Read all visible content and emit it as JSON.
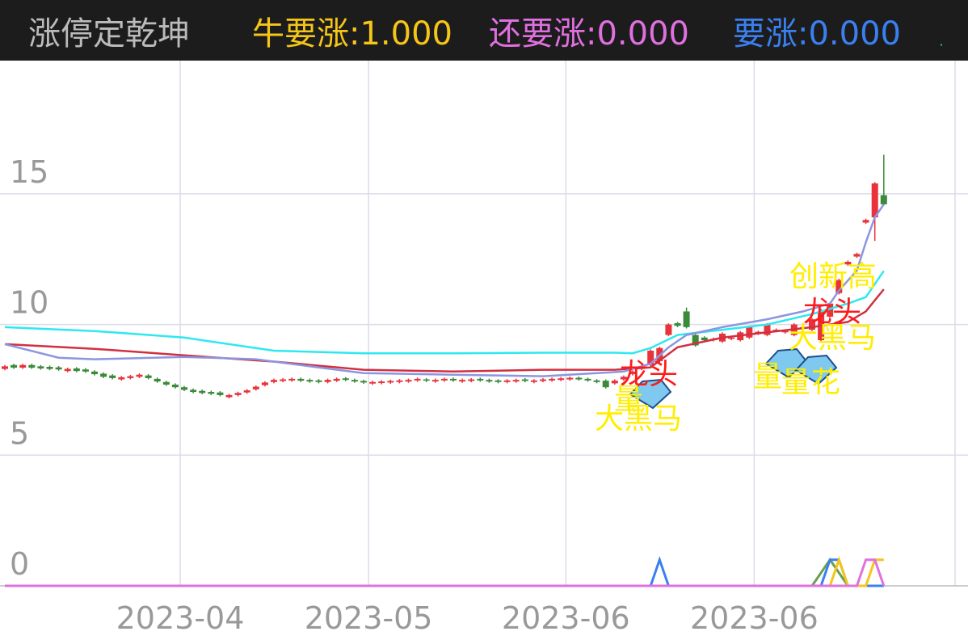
{
  "header": {
    "title": "涨停定乾坤",
    "indicators": [
      {
        "name": "牛要涨:",
        "value": 1,
        "value_label": "1.000",
        "color": "#f5c518"
      },
      {
        "name": "还要涨:",
        "value": 0,
        "value_label": "0.000",
        "color": "#e070e0"
      },
      {
        "name": "要涨:",
        "value": 0,
        "value_label": "0.000",
        "color": "#3a80f0"
      }
    ]
  },
  "chart_data": {
    "type": "candlestick",
    "categories": [
      null,
      null,
      null,
      null,
      null,
      null,
      null,
      null,
      null,
      null,
      null,
      null,
      null,
      null,
      null,
      null,
      null,
      null,
      null,
      null,
      "2023-04",
      null,
      null,
      null,
      null,
      null,
      null,
      null,
      null,
      null,
      null,
      null,
      null,
      null,
      null,
      null,
      null,
      null,
      null,
      null,
      null,
      "2023-05",
      null,
      null,
      null,
      null,
      null,
      null,
      null,
      null,
      null,
      null,
      null,
      null,
      null,
      null,
      null,
      null,
      null,
      null,
      null,
      null,
      null,
      "2023-06",
      null,
      null,
      null,
      null,
      null,
      null,
      null,
      null,
      null,
      null,
      null,
      null,
      null,
      null,
      null,
      null,
      null,
      null,
      null,
      null,
      "2023-06",
      null,
      null,
      null,
      null,
      null,
      null,
      null,
      null,
      null,
      null,
      null,
      null,
      null,
      null
    ],
    "open": [
      8.3,
      8.45,
      8.35,
      8.45,
      8.4,
      8.38,
      8.36,
      8.22,
      8.32,
      8.28,
      8.2,
      8.12,
      8.05,
      7.9,
      7.95,
      8.0,
      8.05,
      7.92,
      7.8,
      7.7,
      7.6,
      7.5,
      7.46,
      7.42,
      7.4,
      7.22,
      7.3,
      7.4,
      7.52,
      7.68,
      7.8,
      7.84,
      7.86,
      7.92,
      7.88,
      7.86,
      7.8,
      7.85,
      7.94,
      7.88,
      7.84,
      7.74,
      7.76,
      7.78,
      7.8,
      7.82,
      7.86,
      7.9,
      7.82,
      7.86,
      7.92,
      7.82,
      7.84,
      7.92,
      7.88,
      7.86,
      7.8,
      7.82,
      7.9,
      7.8,
      7.84,
      7.86,
      7.88,
      7.9,
      7.96,
      7.92,
      7.86,
      7.85,
      7.75,
      7.9,
      8.1,
      8.3,
      8.45,
      8.6,
      9.6,
      10.05,
      10.5,
      9.6,
      9.5,
      9.4,
      9.35,
      9.45,
      9.4,
      9.5,
      9.65,
      9.6,
      9.75,
      9.7,
      9.6,
      9.85,
      9.8,
      9.4,
      10.3,
      11.2,
      12.3,
      12.6,
      13.9,
      14.1,
      14.95
    ],
    "high": [
      8.45,
      8.5,
      8.5,
      8.5,
      8.45,
      8.43,
      8.41,
      8.35,
      8.37,
      8.33,
      8.25,
      8.17,
      8.1,
      8.03,
      8.07,
      8.13,
      8.1,
      7.97,
      7.85,
      7.75,
      7.65,
      7.55,
      7.51,
      7.47,
      7.45,
      7.35,
      7.43,
      7.53,
      7.67,
      7.83,
      7.93,
      7.95,
      7.97,
      7.97,
      7.93,
      7.91,
      7.93,
      7.97,
      7.99,
      7.93,
      7.89,
      7.85,
      7.87,
      7.89,
      7.91,
      7.93,
      7.97,
      7.95,
      7.93,
      7.97,
      7.97,
      7.93,
      7.95,
      7.97,
      7.93,
      7.91,
      7.91,
      7.93,
      7.95,
      7.91,
      7.95,
      7.97,
      7.99,
      8.01,
      8.01,
      7.97,
      7.91,
      7.9,
      7.9,
      8.05,
      8.25,
      8.45,
      9.05,
      9.15,
      10.05,
      10.1,
      10.65,
      9.65,
      9.55,
      9.5,
      9.7,
      9.55,
      9.75,
      9.95,
      9.77,
      10.05,
      9.85,
      9.8,
      10.05,
      9.95,
      10.25,
      10.6,
      10.85,
      11.75,
      12.45,
      12.75,
      14.05,
      15.45,
      16.5
    ],
    "low": [
      8.25,
      8.3,
      8.3,
      8.3,
      8.27,
      8.25,
      8.23,
      8.17,
      8.17,
      8.15,
      8.05,
      7.95,
      7.9,
      7.85,
      7.9,
      7.95,
      7.9,
      7.77,
      7.65,
      7.55,
      7.45,
      7.37,
      7.33,
      7.3,
      7.25,
      7.17,
      7.25,
      7.35,
      7.47,
      7.63,
      7.75,
      7.79,
      7.81,
      7.8,
      7.77,
      7.75,
      7.75,
      7.8,
      7.83,
      7.77,
      7.73,
      7.69,
      7.71,
      7.73,
      7.75,
      7.77,
      7.81,
      7.8,
      7.77,
      7.81,
      7.81,
      7.77,
      7.79,
      7.81,
      7.77,
      7.75,
      7.75,
      7.77,
      7.79,
      7.75,
      7.79,
      7.81,
      7.83,
      7.85,
      7.85,
      7.81,
      7.75,
      7.55,
      7.7,
      7.85,
      8.05,
      8.25,
      8.4,
      8.55,
      9.55,
      9.9,
      9.85,
      9.15,
      9.35,
      9.35,
      9.3,
      9.4,
      9.35,
      9.45,
      9.6,
      9.55,
      9.7,
      9.65,
      9.55,
      9.8,
      9.75,
      9.35,
      10.25,
      11.15,
      12.25,
      12.55,
      13.85,
      13.2,
      14.55
    ],
    "close": [
      8.4,
      8.35,
      8.45,
      8.35,
      8.32,
      8.3,
      8.28,
      8.3,
      8.22,
      8.2,
      8.1,
      8.0,
      7.95,
      7.98,
      8.02,
      8.08,
      7.95,
      7.82,
      7.7,
      7.6,
      7.5,
      7.42,
      7.38,
      7.35,
      7.3,
      7.3,
      7.38,
      7.48,
      7.62,
      7.78,
      7.88,
      7.9,
      7.92,
      7.85,
      7.82,
      7.8,
      7.88,
      7.92,
      7.88,
      7.82,
      7.78,
      7.8,
      7.82,
      7.84,
      7.86,
      7.88,
      7.92,
      7.85,
      7.88,
      7.92,
      7.86,
      7.88,
      7.9,
      7.86,
      7.82,
      7.8,
      7.86,
      7.88,
      7.84,
      7.86,
      7.9,
      7.92,
      7.94,
      7.96,
      7.9,
      7.86,
      7.8,
      7.6,
      7.85,
      8.0,
      8.2,
      8.4,
      9.0,
      9.1,
      10.0,
      9.95,
      9.9,
      9.2,
      9.4,
      9.45,
      9.65,
      9.5,
      9.7,
      9.9,
      9.72,
      10.0,
      9.8,
      9.75,
      10.0,
      9.9,
      10.2,
      10.5,
      10.8,
      11.7,
      12.4,
      12.7,
      14.0,
      15.4,
      14.6
    ],
    "up_color": "#e8333a",
    "down_color": "#3a8a3a",
    "lines": [
      {
        "color": "#2ee8f0",
        "x": [
          0,
          10,
          20,
          30,
          40,
          50,
          60,
          68,
          70,
          72,
          75,
          80,
          85,
          90,
          94,
          96,
          98
        ],
        "values": [
          9.9,
          9.75,
          9.5,
          9.0,
          8.9,
          8.9,
          8.92,
          8.92,
          8.9,
          9.1,
          9.6,
          9.8,
          10.0,
          10.4,
          10.8,
          11.05,
          12.05
        ]
      },
      {
        "color": "#d03040",
        "x": [
          0,
          10,
          20,
          30,
          40,
          50,
          60,
          68,
          72,
          75,
          80,
          85,
          90,
          94,
          96,
          98
        ],
        "values": [
          9.25,
          9.07,
          8.82,
          8.58,
          8.27,
          8.2,
          8.27,
          8.27,
          8.36,
          9.13,
          9.5,
          9.7,
          9.9,
          10.1,
          10.5,
          11.35
        ]
      },
      {
        "color": "#8c96e0",
        "x": [
          0,
          6,
          10,
          20,
          28,
          35,
          40,
          50,
          60,
          66,
          69,
          72,
          74,
          76,
          80,
          85,
          89,
          92,
          93,
          95,
          96,
          97,
          98
        ],
        "values": [
          9.25,
          8.73,
          8.67,
          8.76,
          8.67,
          8.36,
          8.14,
          8.08,
          8.02,
          8.14,
          8.2,
          8.5,
          9.13,
          9.6,
          9.9,
          10.2,
          10.5,
          10.8,
          11.3,
          12.07,
          13.15,
          14.1,
          14.6
        ]
      }
    ],
    "signals": [
      {
        "color": "#6aa050",
        "x": [
          0,
          90,
          92,
          94,
          98
        ],
        "values": [
          0,
          0,
          1,
          0,
          0
        ]
      },
      {
        "color": "#3a80f0",
        "x": [
          0,
          72,
          73,
          74,
          91,
          92,
          93,
          94,
          98
        ],
        "values": [
          0,
          0,
          1,
          0,
          0,
          1,
          1,
          0,
          0
        ]
      },
      {
        "color": "#f5c518",
        "x": [
          0,
          92,
          93,
          94,
          96,
          97,
          98
        ],
        "values": [
          0,
          0,
          1,
          0,
          0,
          1,
          1
        ]
      },
      {
        "color": "#e070e0",
        "x": [
          0,
          94,
          95,
          96,
          97,
          98
        ],
        "values": [
          0,
          0,
          0,
          1,
          1,
          0
        ]
      }
    ],
    "annotations": [
      {
        "text": "龙头",
        "color": "#ff1a1a"
      },
      {
        "text": "量",
        "color": "#ffee00"
      },
      {
        "text": "大黑马",
        "color": "#ffee00"
      },
      {
        "text": "创新高",
        "color": "#ffee00"
      },
      {
        "text": "龙头",
        "color": "#ff1a1a"
      },
      {
        "text": "大黑马",
        "color": "#ffee00"
      },
      {
        "text": "量",
        "color": "#ffee00"
      },
      {
        "text": "量",
        "color": "#ffee00"
      },
      {
        "text": "花",
        "color": "#ffee00"
      }
    ],
    "ylim": [
      0,
      20.1
    ],
    "yticks": [
      0,
      5,
      10,
      15
    ],
    "grid": true
  }
}
